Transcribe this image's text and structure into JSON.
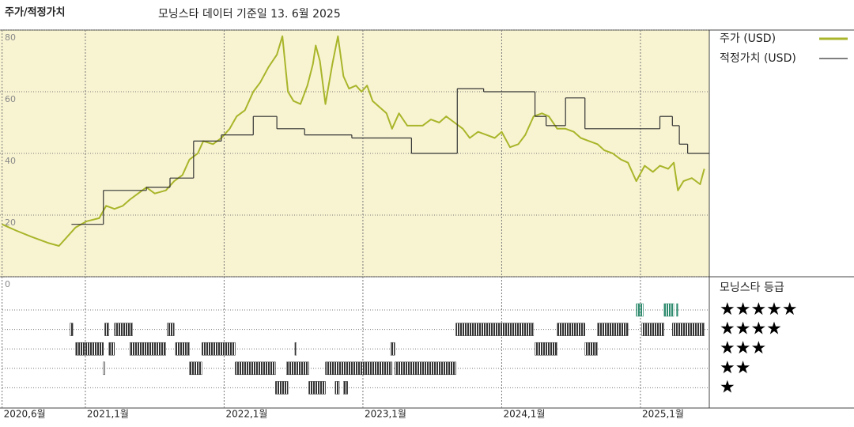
{
  "chart_data": {
    "type": "line",
    "title": "주가/적정가치",
    "subtitle": "모닝스타 데이터 기준일 13. 6월 2025",
    "xlim": [
      2020.385,
      2025.496
    ],
    "xticks": [
      {
        "value": 2020.4,
        "label": "2020,6월"
      },
      {
        "value": 2021,
        "label": "2021,1월"
      },
      {
        "value": 2022,
        "label": "2022,1월"
      },
      {
        "value": 2023,
        "label": "2023,1월"
      },
      {
        "value": 2024,
        "label": "2024,1월"
      },
      {
        "value": 2025,
        "label": "2025,1월"
      }
    ],
    "ylim": [
      0,
      80
    ],
    "yticks": [
      0,
      20,
      40,
      60,
      80
    ],
    "grid": true,
    "series": [
      {
        "name": "주가 (USD)",
        "color": "#a9b52a",
        "line_style": "line",
        "x": [
          2020.4,
          2020.5,
          2020.61,
          2020.73,
          2020.81,
          2020.87,
          2020.93,
          2021.01,
          2021.1,
          2021.15,
          2021.21,
          2021.27,
          2021.32,
          2021.38,
          2021.44,
          2021.5,
          2021.58,
          2021.64,
          2021.7,
          2021.75,
          2021.81,
          2021.85,
          2021.92,
          2021.98,
          2022.04,
          2022.09,
          2022.15,
          2022.21,
          2022.26,
          2022.32,
          2022.38,
          2022.42,
          2022.46,
          2022.5,
          2022.55,
          2022.6,
          2022.64,
          2022.66,
          2022.69,
          2022.73,
          2022.78,
          2022.82,
          2022.86,
          2022.9,
          2022.95,
          2022.99,
          2023.03,
          2023.07,
          2023.12,
          2023.17,
          2023.21,
          2023.26,
          2023.32,
          2023.38,
          2023.43,
          2023.49,
          2023.55,
          2023.6,
          2023.66,
          2023.72,
          2023.77,
          2023.83,
          2023.89,
          2023.95,
          2024.0,
          2024.06,
          2024.12,
          2024.17,
          2024.23,
          2024.29,
          2024.34,
          2024.4,
          2024.46,
          2024.52,
          2024.57,
          2024.63,
          2024.69,
          2024.74,
          2024.8,
          2024.86,
          2024.91,
          2024.97,
          2025.03,
          2025.09,
          2025.14,
          2025.2,
          2025.24,
          2025.27,
          2025.31,
          2025.37,
          2025.43,
          2025.46
        ],
        "values": [
          17,
          15,
          13,
          11,
          10,
          13,
          16,
          18,
          19,
          23,
          22,
          23,
          25,
          27,
          29,
          27,
          28,
          31,
          33,
          38,
          40,
          44,
          43,
          45,
          48,
          52,
          54,
          60,
          63,
          68,
          72,
          78,
          60,
          57,
          56,
          62,
          69,
          75,
          70,
          56,
          69,
          78,
          65,
          61,
          62,
          60,
          62,
          57,
          55,
          53,
          48,
          53,
          49,
          49,
          49,
          51,
          50,
          52,
          50,
          48,
          45,
          47,
          46,
          45,
          47,
          42,
          43,
          46,
          52,
          53,
          52,
          48,
          48,
          47,
          45,
          44,
          43,
          41,
          40,
          38,
          37,
          31,
          36,
          34,
          36,
          35,
          37,
          28,
          31,
          32,
          30,
          35
        ]
      },
      {
        "name": "적정가치 (USD)",
        "color": "#333333",
        "line_style": "step",
        "x": [
          2020.9,
          2021.13,
          2021.44,
          2021.61,
          2021.78,
          2021.98,
          2022.21,
          2022.38,
          2022.58,
          2022.92,
          2023.35,
          2023.68,
          2023.87,
          2024.24,
          2024.32,
          2024.46,
          2024.6,
          2025.14,
          2025.23,
          2025.28,
          2025.34
        ],
        "values": [
          17,
          28,
          29,
          32,
          44,
          46,
          52,
          48,
          46,
          45,
          40,
          61,
          60,
          52,
          49,
          58,
          48,
          52,
          49,
          43,
          40
        ]
      }
    ],
    "ratings": {
      "title": "모닝스타 등급",
      "rows": [
        {
          "label": "★★★★★",
          "color": "#2e8b6e",
          "periods": [
            [
              2024.97,
              2025.02
            ],
            [
              2025.17,
              2025.24
            ],
            [
              2025.26,
              2025.27
            ]
          ]
        },
        {
          "label": "★★★★",
          "color": "#333333",
          "periods": [
            [
              2020.89,
              2020.91
            ],
            [
              2021.14,
              2021.17
            ],
            [
              2021.21,
              2021.34
            ],
            [
              2021.59,
              2021.64
            ],
            [
              2023.67,
              2024.23
            ],
            [
              2024.4,
              2024.6
            ],
            [
              2024.69,
              2024.91
            ],
            [
              2025.01,
              2025.17
            ],
            [
              2025.23,
              2025.46
            ]
          ]
        },
        {
          "label": "★★★",
          "color": "#333333",
          "periods": [
            [
              2020.93,
              2021.13
            ],
            [
              2021.17,
              2021.21
            ],
            [
              2021.32,
              2021.58
            ],
            [
              2021.65,
              2021.75
            ],
            [
              2021.84,
              2022.08
            ],
            [
              2022.51,
              2022.52
            ],
            [
              2023.2,
              2023.23
            ],
            [
              2024.24,
              2024.4
            ],
            [
              2024.6,
              2024.69
            ]
          ]
        },
        {
          "label": "★★",
          "color": "#333333",
          "periods": [
            [
              2021.13,
              2021.14
            ],
            [
              2021.75,
              2021.84
            ],
            [
              2022.08,
              2022.37
            ],
            [
              2022.45,
              2022.61
            ],
            [
              2022.73,
              2023.21
            ],
            [
              2023.23,
              2023.67
            ]
          ]
        },
        {
          "label": "★",
          "color": "#333333",
          "periods": [
            [
              2022.37,
              2022.46
            ],
            [
              2022.61,
              2022.73
            ],
            [
              2022.8,
              2022.83
            ],
            [
              2022.86,
              2022.89
            ]
          ]
        }
      ]
    }
  }
}
